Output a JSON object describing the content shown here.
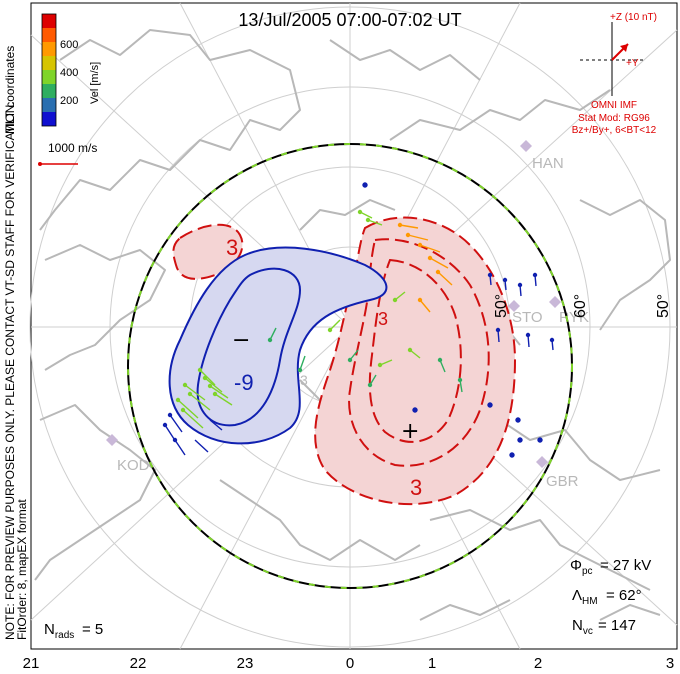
{
  "title": "13/Jul/2005 07:00-07:02 UT",
  "side_note": {
    "coords": "MLT coordinates",
    "preview": "NOTE: FOR PREVIEW PURPOSES ONLY. PLEASE CONTACT VT-SD STAFF FOR VERIFICATION.",
    "fit": "FitOrder: 8, mapEX format"
  },
  "colorbar": {
    "label": "Vel [m/s]",
    "ticks": [
      "600",
      "400",
      "200"
    ],
    "colors": [
      "#dd0000",
      "#ff5a00",
      "#ff9900",
      "#d6c400",
      "#7fd42a",
      "#2fae60",
      "#2a6fb0",
      "#1010d0"
    ]
  },
  "ref_vector": {
    "label": "1000 m/s",
    "color": "#dd0000"
  },
  "imf": {
    "z_label": "+Z (10 nT)",
    "y_label": "+Y",
    "source": "OMNI IMF",
    "model": "Stat Mod: RG96",
    "condition": "Bz+/By+, 6<BT<12",
    "color": "#dd0000"
  },
  "stations": [
    "HAN",
    "STO",
    "PYK",
    "KOD",
    "GBR"
  ],
  "lat_labels": [
    "50°",
    "60°",
    "50°"
  ],
  "stats": {
    "phi": "= 27 kV",
    "lambda": "= 62°",
    "nvc": "= 147",
    "nrads": "= 5"
  },
  "mlt_ticks": [
    "21",
    "22",
    "23",
    "0",
    "1",
    "2",
    "3"
  ],
  "contour_labels": [
    "3",
    "-9",
    "3",
    "3",
    "3"
  ],
  "cell_markers": {
    "min": "−",
    "max": "+"
  },
  "colors": {
    "positive_fill": "#f4d4d4",
    "positive_line": "#d01010",
    "negative_fill": "#d6d8f0",
    "negative_line": "#1020b0",
    "boundary": "#000000",
    "boundary_dash": "#7fd42a",
    "coast": "#b8b8b8",
    "grid": "#cfcfcf"
  }
}
